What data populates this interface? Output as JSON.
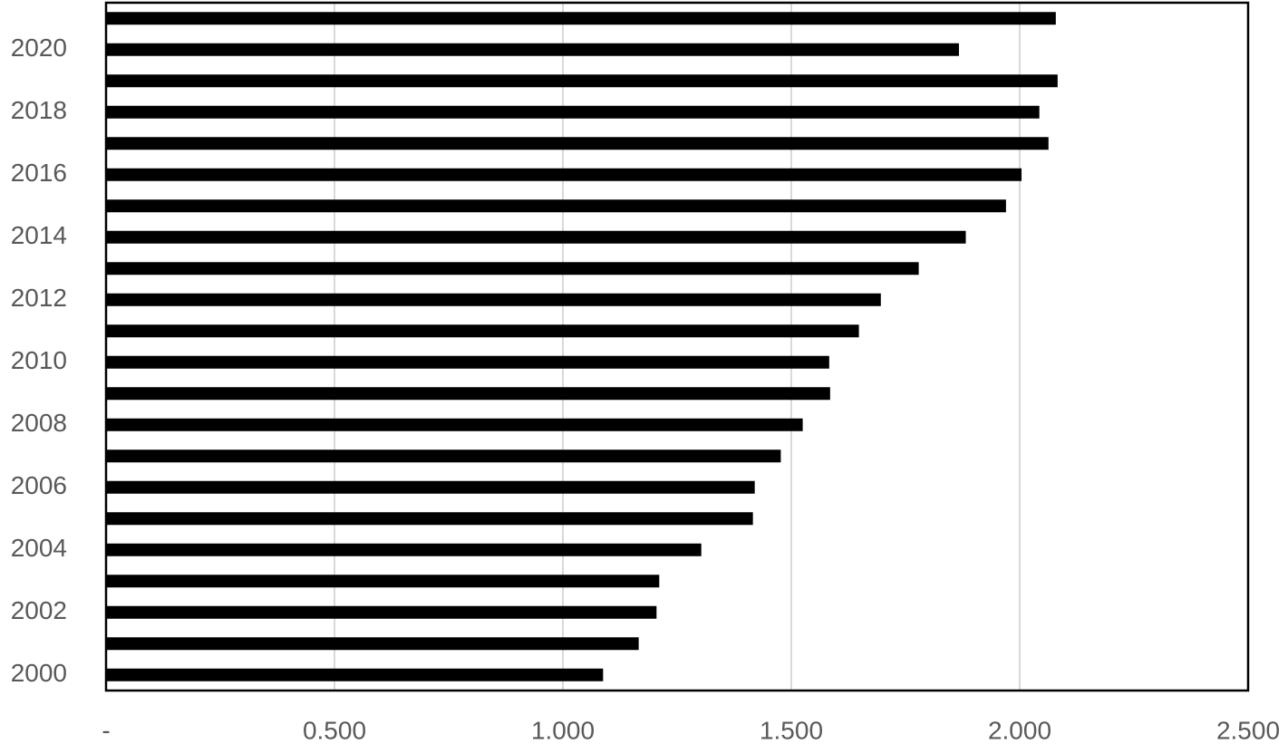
{
  "chart_data": {
    "type": "barh",
    "categories": [
      "2000",
      null,
      "2002",
      null,
      "2004",
      null,
      "2006",
      null,
      "2008",
      null,
      "2010",
      null,
      "2012",
      null,
      "2014",
      null,
      "2016",
      null,
      "2018",
      null,
      "2020",
      null
    ],
    "values": [
      1.088,
      1.166,
      1.205,
      1.211,
      1.303,
      1.416,
      1.42,
      1.477,
      1.525,
      1.585,
      1.583,
      1.648,
      1.696,
      1.779,
      1.882,
      1.97,
      2.004,
      2.063,
      2.043,
      2.083,
      1.867,
      2.079
    ],
    "color": "#000000",
    "xlim": [
      0,
      2.5
    ],
    "xticks": [
      {
        "value": 0,
        "label": "-"
      },
      {
        "value": 0.5,
        "label": "0.500"
      },
      {
        "value": 1,
        "label": "1.000"
      },
      {
        "value": 1.5,
        "label": "1.500"
      },
      {
        "value": 2,
        "label": "2.000"
      },
      {
        "value": 2.5,
        "label": "2.500"
      }
    ],
    "grid": true
  }
}
